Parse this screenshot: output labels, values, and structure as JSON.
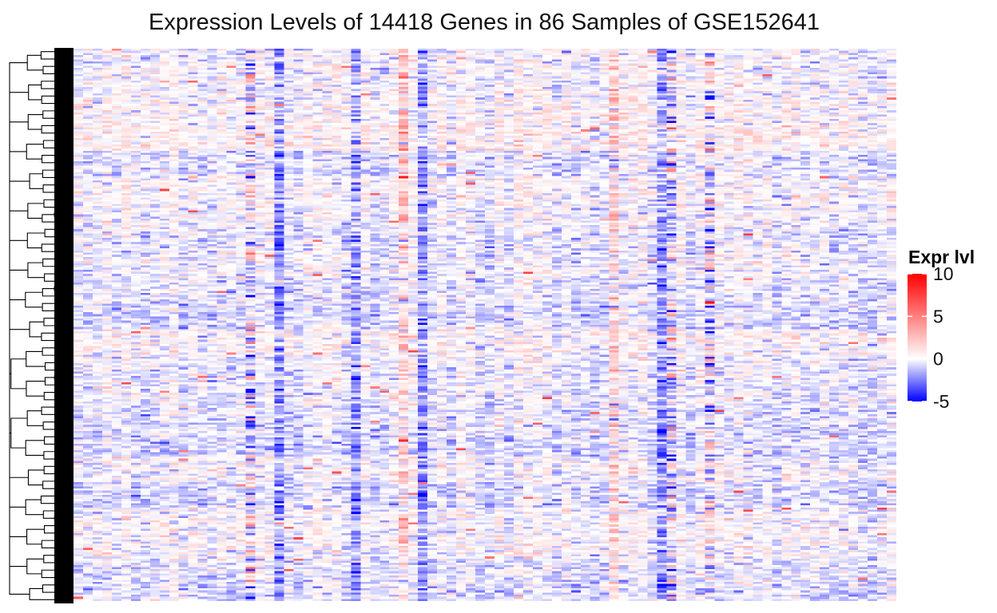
{
  "chart_data": {
    "type": "heatmap",
    "title": "Expression Levels of 14418 Genes in 86 Samples of GSE152641",
    "n_genes": 14418,
    "n_samples": 86,
    "dataset": "GSE152641",
    "row_dendrogram": true,
    "column_dendrogram": false,
    "color_scale": {
      "min": -5,
      "mid": 0,
      "max": 10,
      "colors": {
        "low": "#0000ff",
        "mid": "#ffffff",
        "high": "#ff0000"
      }
    },
    "legend": {
      "title": "Expr lvl",
      "ticks": [
        "10",
        "5",
        "0",
        "-5"
      ],
      "tick_values": [
        10,
        5,
        0,
        -5
      ],
      "placement": "right"
    },
    "hot_columns": [
      34,
      56
    ],
    "cold_columns": [
      21,
      29,
      36,
      61
    ],
    "mixed_columns": [
      18,
      62,
      66
    ]
  }
}
